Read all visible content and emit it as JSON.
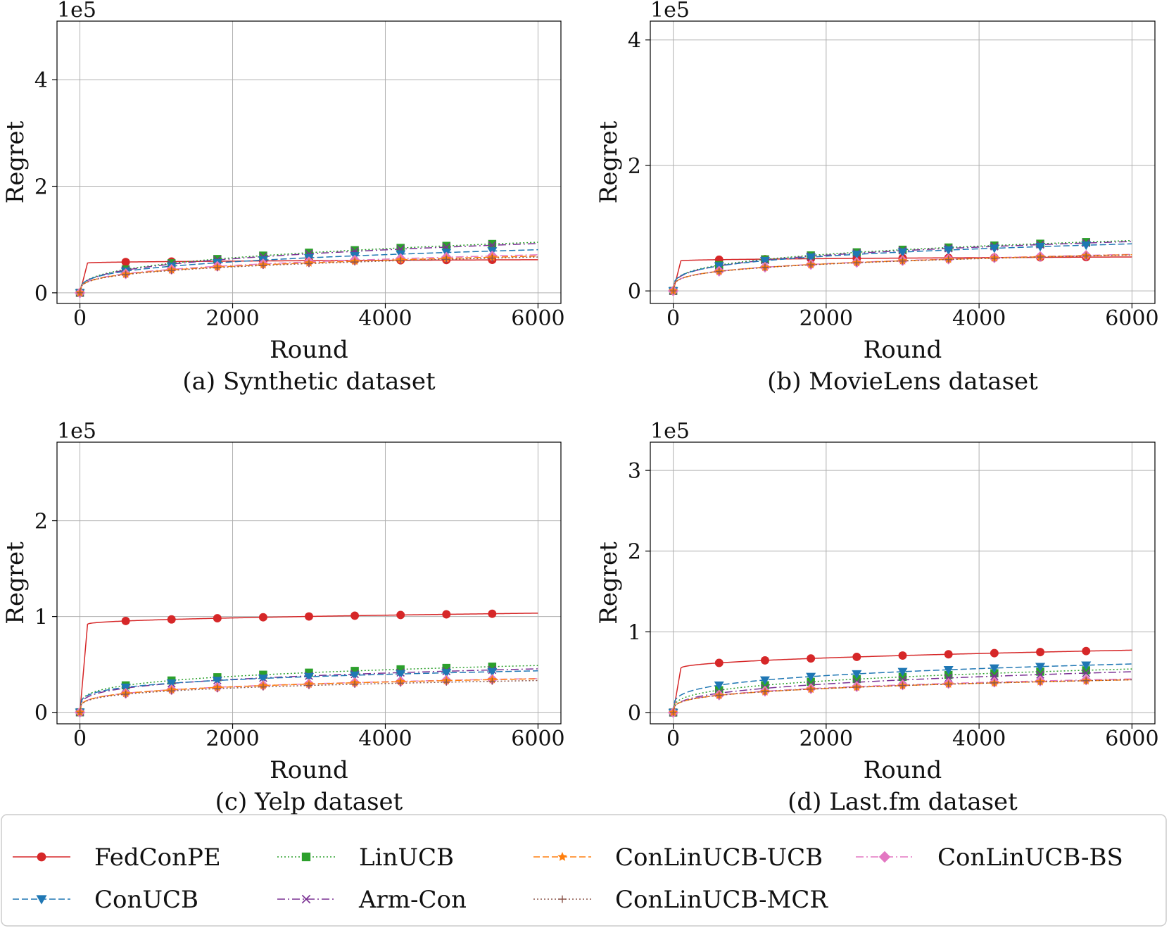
{
  "colors": {
    "FedConPE": "#d62728",
    "ConUCB": "#1f77b4",
    "LinUCB": "#2ca02c",
    "Arm-Con": "#7b3294",
    "ConLinUCB-UCB": "#ff7f0e",
    "ConLinUCB-MCR": "#8c564b",
    "ConLinUCB-BS": "#e377c2"
  },
  "legend": {
    "placement": "bottom",
    "entries": [
      {
        "key": "FedConPE",
        "label": "FedConPE",
        "marker": "circle",
        "dash": "solid"
      },
      {
        "key": "LinUCB",
        "label": "LinUCB",
        "marker": "square",
        "dash": "dotted"
      },
      {
        "key": "ConLinUCB-UCB",
        "label": "ConLinUCB-UCB",
        "marker": "star",
        "dash": "dashed"
      },
      {
        "key": "ConLinUCB-BS",
        "label": "ConLinUCB-BS",
        "marker": "diamond",
        "dash": "dashdot"
      },
      {
        "key": "ConUCB",
        "label": "ConUCB",
        "marker": "triangle-down",
        "dash": "dashed"
      },
      {
        "key": "Arm-Con",
        "label": "Arm-Con",
        "marker": "x",
        "dash": "dashdot"
      },
      {
        "key": "ConLinUCB-MCR",
        "label": "ConLinUCB-MCR",
        "marker": "plus",
        "dash": "dotted"
      }
    ]
  },
  "chart_data": [
    {
      "type": "line",
      "caption": "(a) Synthetic dataset",
      "xlabel": "Round",
      "ylabel": "Regret",
      "offset_label": "1e5",
      "xlim": [
        -300,
        6300
      ],
      "ylim": [
        -0.2,
        5.1
      ],
      "xticks": [
        0,
        2000,
        4000,
        6000
      ],
      "xtick_labels": [
        "0",
        "2000",
        "4000",
        "6000"
      ],
      "yticks": [
        0,
        2,
        4
      ],
      "ytick_labels": [
        "0",
        "2",
        "4"
      ],
      "grid": true,
      "series": [
        {
          "key": "FedConPE",
          "curve": "jump",
          "j": 0.56,
          "a": 0.0008,
          "p": 0.5
        },
        {
          "key": "LinUCB",
          "curve": "power",
          "a": 0.0515,
          "p": 0.335
        },
        {
          "key": "Arm-Con",
          "curve": "power",
          "a": 0.0493,
          "p": 0.337
        },
        {
          "key": "ConUCB",
          "curve": "power",
          "a": 0.0595,
          "p": 0.3
        },
        {
          "key": "ConLinUCB-BS",
          "curve": "power",
          "a": 0.0525,
          "p": 0.3
        },
        {
          "key": "ConLinUCB-UCB",
          "curve": "power",
          "a": 0.0525,
          "p": 0.296
        },
        {
          "key": "ConLinUCB-MCR",
          "curve": "power",
          "a": 0.0525,
          "p": 0.293
        }
      ]
    },
    {
      "type": "line",
      "caption": "(b) MovieLens dataset",
      "xlabel": "Round",
      "ylabel": "Regret",
      "offset_label": "1e5",
      "xlim": [
        -300,
        6300
      ],
      "ylim": [
        -0.2,
        4.3
      ],
      "xticks": [
        0,
        2000,
        4000,
        6000
      ],
      "xtick_labels": [
        "0",
        "2000",
        "4000",
        "6000"
      ],
      "yticks": [
        0,
        2,
        4
      ],
      "ytick_labels": [
        "0",
        "2",
        "4"
      ],
      "grid": true,
      "series": [
        {
          "key": "FedConPE",
          "curve": "jump",
          "j": 0.48,
          "a": 0.0008,
          "p": 0.5
        },
        {
          "key": "LinUCB",
          "curve": "power",
          "a": 0.0644,
          "p": 0.29
        },
        {
          "key": "Arm-Con",
          "curve": "power",
          "a": 0.0605,
          "p": 0.295
        },
        {
          "key": "ConUCB",
          "curve": "power",
          "a": 0.068,
          "p": 0.276
        },
        {
          "key": "ConLinUCB-BS",
          "curve": "power",
          "a": 0.0566,
          "p": 0.268
        },
        {
          "key": "ConLinUCB-UCB",
          "curve": "power",
          "a": 0.0566,
          "p": 0.267
        },
        {
          "key": "ConLinUCB-MCR",
          "curve": "power",
          "a": 0.0566,
          "p": 0.266
        }
      ]
    },
    {
      "type": "line",
      "caption": "(c) Yelp dataset",
      "xlabel": "Round",
      "ylabel": "Regret",
      "offset_label": "1e5",
      "xlim": [
        -300,
        6300
      ],
      "ylim": [
        -0.12,
        2.82
      ],
      "xticks": [
        0,
        2000,
        4000,
        6000
      ],
      "xtick_labels": [
        "0",
        "2000",
        "4000",
        "6000"
      ],
      "yticks": [
        0,
        1,
        2
      ],
      "ytick_labels": [
        "0",
        "1",
        "2"
      ],
      "grid": true,
      "series": [
        {
          "key": "FedConPE",
          "curve": "jump",
          "j": 0.92,
          "a": 0.0015,
          "p": 0.5
        },
        {
          "key": "LinUCB",
          "curve": "power",
          "a": 0.0606,
          "p": 0.24
        },
        {
          "key": "Arm-Con",
          "curve": "power",
          "a": 0.0494,
          "p": 0.255
        },
        {
          "key": "ConUCB",
          "curve": "power",
          "a": 0.0639,
          "p": 0.22
        },
        {
          "key": "ConLinUCB-BS",
          "curve": "power",
          "a": 0.0401,
          "p": 0.25
        },
        {
          "key": "ConLinUCB-UCB",
          "curve": "power",
          "a": 0.0401,
          "p": 0.249
        },
        {
          "key": "ConLinUCB-MCR",
          "curve": "power",
          "a": 0.0394,
          "p": 0.245
        }
      ]
    },
    {
      "type": "line",
      "caption": "(d) Last.fm dataset",
      "xlabel": "Round",
      "ylabel": "Regret",
      "offset_label": "1e5",
      "xlim": [
        -300,
        6300
      ],
      "ylim": [
        -0.14,
        3.35
      ],
      "xticks": [
        0,
        2000,
        4000,
        6000
      ],
      "xtick_labels": [
        "0",
        "2000",
        "4000",
        "6000"
      ],
      "yticks": [
        0,
        1,
        2,
        3
      ],
      "ytick_labels": [
        "0",
        "1",
        "2",
        "3"
      ],
      "grid": true,
      "series": [
        {
          "key": "FedConPE",
          "curve": "jump",
          "j": 0.55,
          "a": 0.0029,
          "p": 0.5
        },
        {
          "key": "LinUCB",
          "curve": "power",
          "a": 0.0433,
          "p": 0.29
        },
        {
          "key": "Arm-Con",
          "curve": "power",
          "a": 0.0299,
          "p": 0.325
        },
        {
          "key": "ConUCB",
          "curve": "power",
          "a": 0.0684,
          "p": 0.25
        },
        {
          "key": "ConLinUCB-BS",
          "curve": "power",
          "a": 0.0355,
          "p": 0.283
        },
        {
          "key": "ConLinUCB-UCB",
          "curve": "power",
          "a": 0.0355,
          "p": 0.28
        },
        {
          "key": "ConLinUCB-MCR",
          "curve": "power",
          "a": 0.0355,
          "p": 0.28
        }
      ]
    }
  ]
}
